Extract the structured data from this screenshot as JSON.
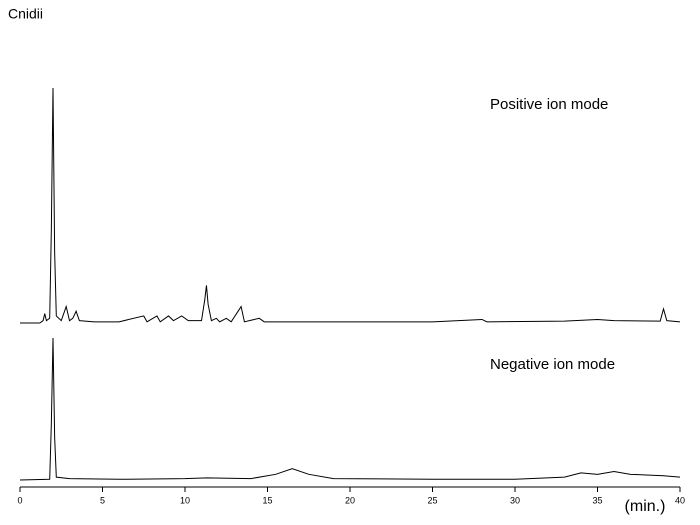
{
  "chart_data": [
    {
      "type": "line",
      "title": "Cnidii",
      "annotation": "Positive ion mode",
      "color": "#000000",
      "xlim": [
        0,
        40
      ],
      "ylim": [
        0,
        100
      ],
      "series": [
        {
          "x": [
            0,
            1.2,
            1.4,
            1.5,
            1.6,
            1.8,
            1.9,
            2.0,
            2.1,
            2.2,
            2.5,
            2.8,
            3.0,
            3.2,
            3.4,
            3.6,
            4.5,
            6,
            7.5,
            7.7,
            8.3,
            8.5,
            9.0,
            9.3,
            9.8,
            10.2,
            11.0,
            11.2,
            11.3,
            11.4,
            11.6,
            11.9,
            12.1,
            12.5,
            12.8,
            13.4,
            13.6,
            14.5,
            14.8,
            20,
            25,
            28,
            28.3,
            33,
            35,
            36,
            38.8,
            39,
            39.2,
            40
          ],
          "values": [
            0,
            0,
            1,
            4,
            1,
            2,
            40,
            100,
            30,
            3,
            1,
            7,
            1,
            2,
            5,
            1,
            0.5,
            0.5,
            3,
            0.5,
            3,
            0.5,
            3,
            1,
            3,
            1,
            1,
            10,
            16,
            8,
            1,
            2,
            0.5,
            2,
            0.5,
            7,
            0.5,
            2,
            0.5,
            0.5,
            0.5,
            1.5,
            0.5,
            0.8,
            1.5,
            1,
            0.8,
            6,
            1,
            0.5
          ]
        }
      ]
    },
    {
      "type": "line",
      "annotation": "Negative ion mode",
      "xlabel": "(min.)",
      "color": "#000000",
      "xlim": [
        0,
        40
      ],
      "ylim": [
        0,
        100
      ],
      "xticks": [
        0,
        5,
        10,
        15,
        20,
        25,
        30,
        35,
        40
      ],
      "series": [
        {
          "x": [
            0,
            1.8,
            1.9,
            2.0,
            2.1,
            2.2,
            3,
            6,
            10,
            11.3,
            14,
            15.5,
            16.5,
            17.5,
            19,
            25,
            30,
            33,
            34,
            35,
            36,
            37,
            39,
            40
          ],
          "values": [
            0,
            0.5,
            40,
            100,
            30,
            2,
            1,
            0.5,
            1,
            1.5,
            1,
            4,
            8,
            4,
            1,
            0.5,
            0.5,
            2,
            5,
            4,
            6,
            4,
            3,
            2
          ]
        }
      ]
    }
  ]
}
